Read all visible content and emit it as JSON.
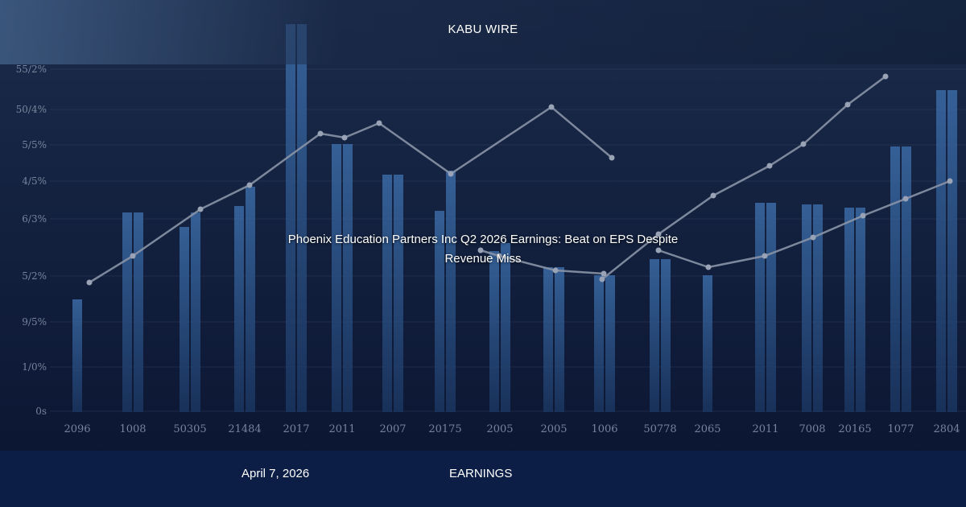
{
  "brand": {
    "name": "KABU WIRE"
  },
  "headline": "Phoenix Education Partners Inc Q2 2026 Earnings: Beat on EPS Despite Revenue Miss",
  "footer": {
    "date": "April 7, 2026",
    "category": "EARNINGS"
  },
  "colors": {
    "bar": "#2e5a8e",
    "line": "#8a93a6",
    "footer": "#0c2048"
  },
  "chart_data": {
    "type": "bar",
    "y_tick_labels": [
      "0s",
      "1∕0%",
      "9∕5%",
      "5∕2%",
      "6∕3%",
      "4∕5%",
      "5∕5%",
      "50∕4%",
      "55∕2%"
    ],
    "x_tick_labels": [
      "2096",
      "1008",
      "50305",
      "21484",
      "2017",
      "2011",
      "2007",
      "20175",
      "2005",
      "2005",
      "1006",
      "50778",
      "2065",
      "2011",
      "7008",
      "20165",
      "1077",
      "2804"
    ],
    "bars": [
      [
        140
      ],
      [
        248,
        248
      ],
      [
        230,
        248
      ],
      [
        256,
        280
      ],
      [
        482,
        482
      ],
      [
        333,
        333
      ],
      [
        295,
        295
      ],
      [
        250,
        300
      ],
      [
        200,
        210
      ],
      [
        180,
        180
      ],
      [
        170,
        170
      ],
      [
        190,
        190
      ],
      [
        170
      ],
      [
        260,
        260
      ],
      [
        258,
        258
      ],
      [
        254,
        254
      ],
      [
        330,
        330
      ],
      [
        400,
        400
      ]
    ],
    "lines": [
      {
        "points": [
          [
            111,
            161
          ],
          [
            165,
            194
          ],
          [
            249,
            252
          ],
          [
            310,
            282
          ],
          [
            398,
            346
          ],
          [
            428,
            341
          ],
          [
            471,
            359
          ],
          [
            560,
            296
          ],
          [
            685,
            379
          ],
          [
            760,
            316
          ]
        ]
      },
      {
        "points": [
          [
            748,
            165
          ],
          [
            818,
            221
          ],
          [
            886,
            269
          ],
          [
            956,
            306
          ],
          [
            998,
            333
          ],
          [
            1053,
            382
          ],
          [
            1100,
            417
          ]
        ]
      },
      {
        "points": [
          [
            597,
            201
          ],
          [
            620,
            194
          ],
          [
            690,
            176
          ],
          [
            750,
            172
          ]
        ]
      },
      {
        "points": [
          [
            818,
            201
          ],
          [
            880,
            180
          ],
          [
            950,
            194
          ],
          [
            1010,
            217
          ],
          [
            1072,
            244
          ],
          [
            1125,
            265
          ],
          [
            1180,
            287
          ]
        ]
      }
    ]
  }
}
